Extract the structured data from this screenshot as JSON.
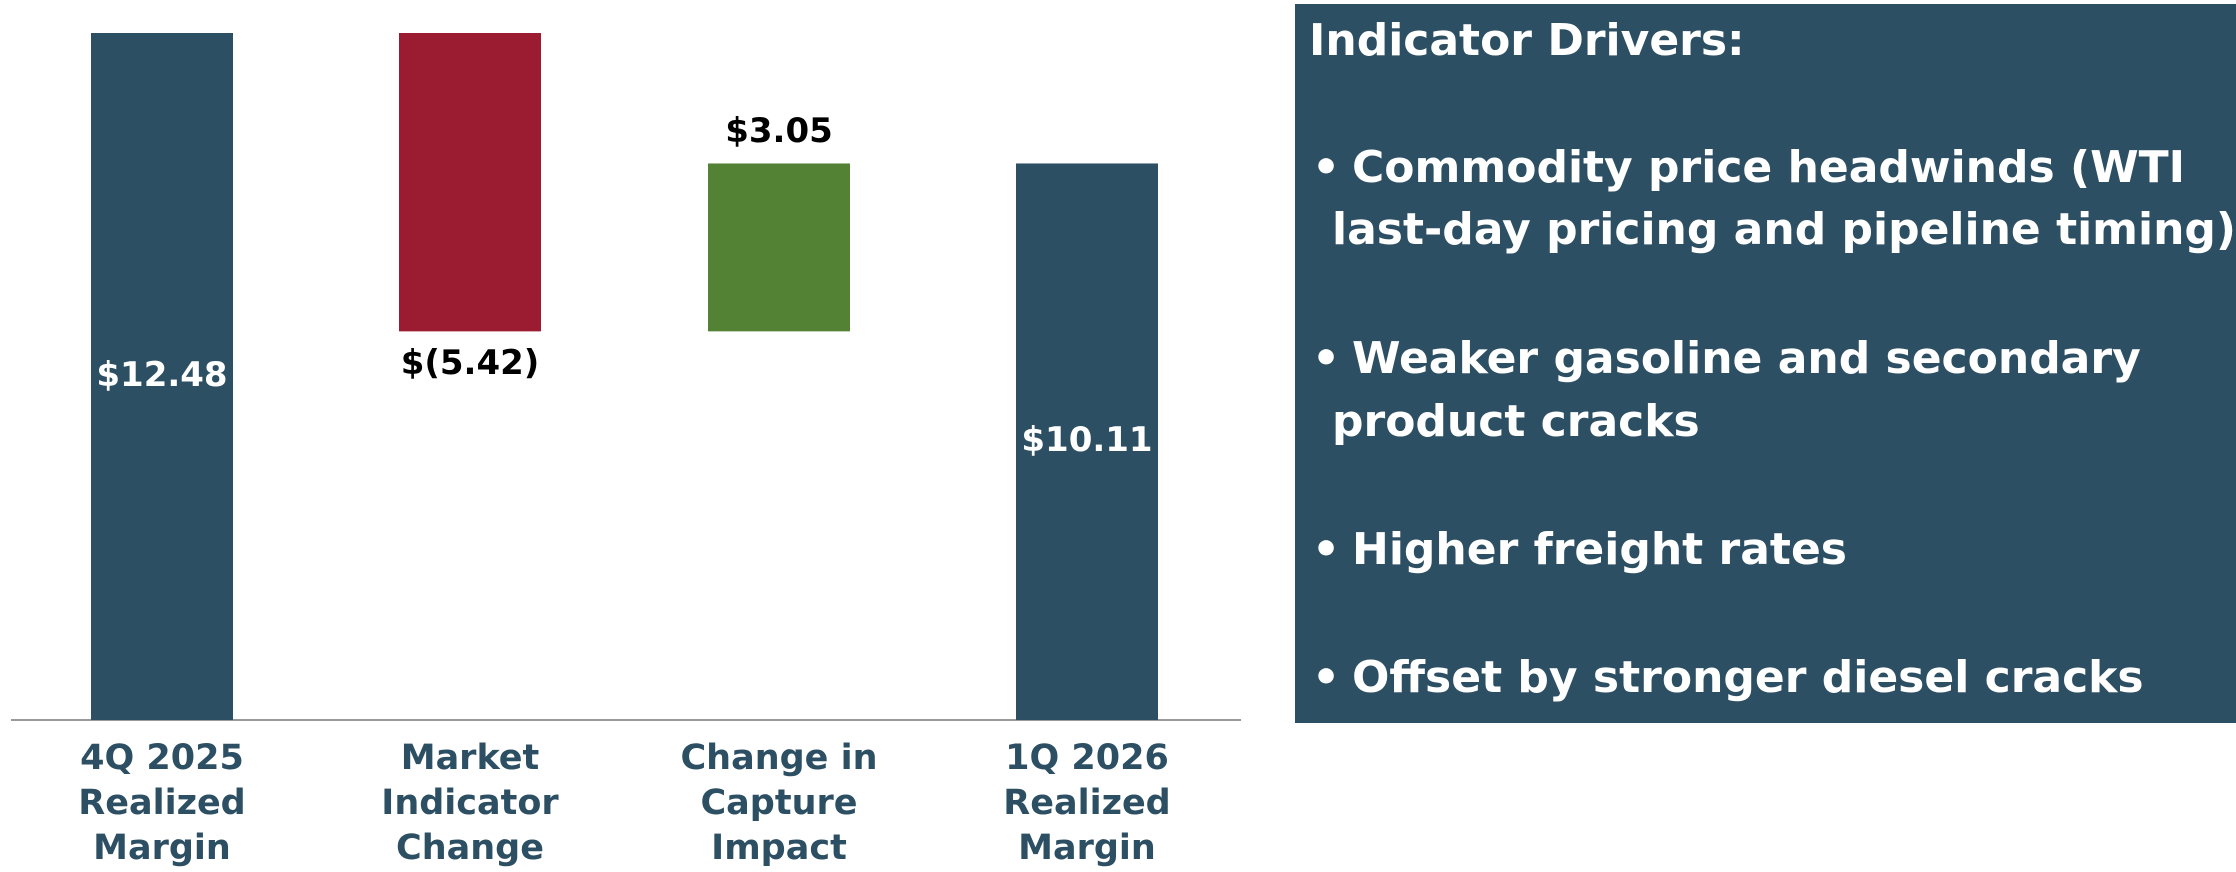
{
  "chart_data": {
    "type": "waterfall",
    "categories": [
      [
        "4Q 2025",
        "Realized",
        "Margin"
      ],
      [
        "Market",
        "Indicator",
        "Change"
      ],
      [
        "Change in",
        "Capture",
        "Impact"
      ],
      [
        "1Q 2026",
        "Realized",
        "Margin"
      ]
    ],
    "values": [
      12.48,
      -5.42,
      3.05,
      10.11
    ],
    "value_labels": [
      "$12.48",
      "$(5.42)",
      "$3.05",
      "$10.11"
    ],
    "measures": [
      "absolute",
      "relative",
      "relative",
      "total"
    ],
    "colors": [
      "#2d4f63",
      "#9b1b30",
      "#548235",
      "#2d4f63"
    ]
  },
  "panel": {
    "title": "Indicator Drivers:",
    "bullets": [
      [
        "Commodity price headwinds (WTI",
        "last-day pricing and pipeline timing)"
      ],
      [
        "Weaker gasoline and secondary",
        "product cracks"
      ],
      [
        "Higher freight rates"
      ],
      [
        "Offset by stronger diesel cracks"
      ]
    ]
  }
}
